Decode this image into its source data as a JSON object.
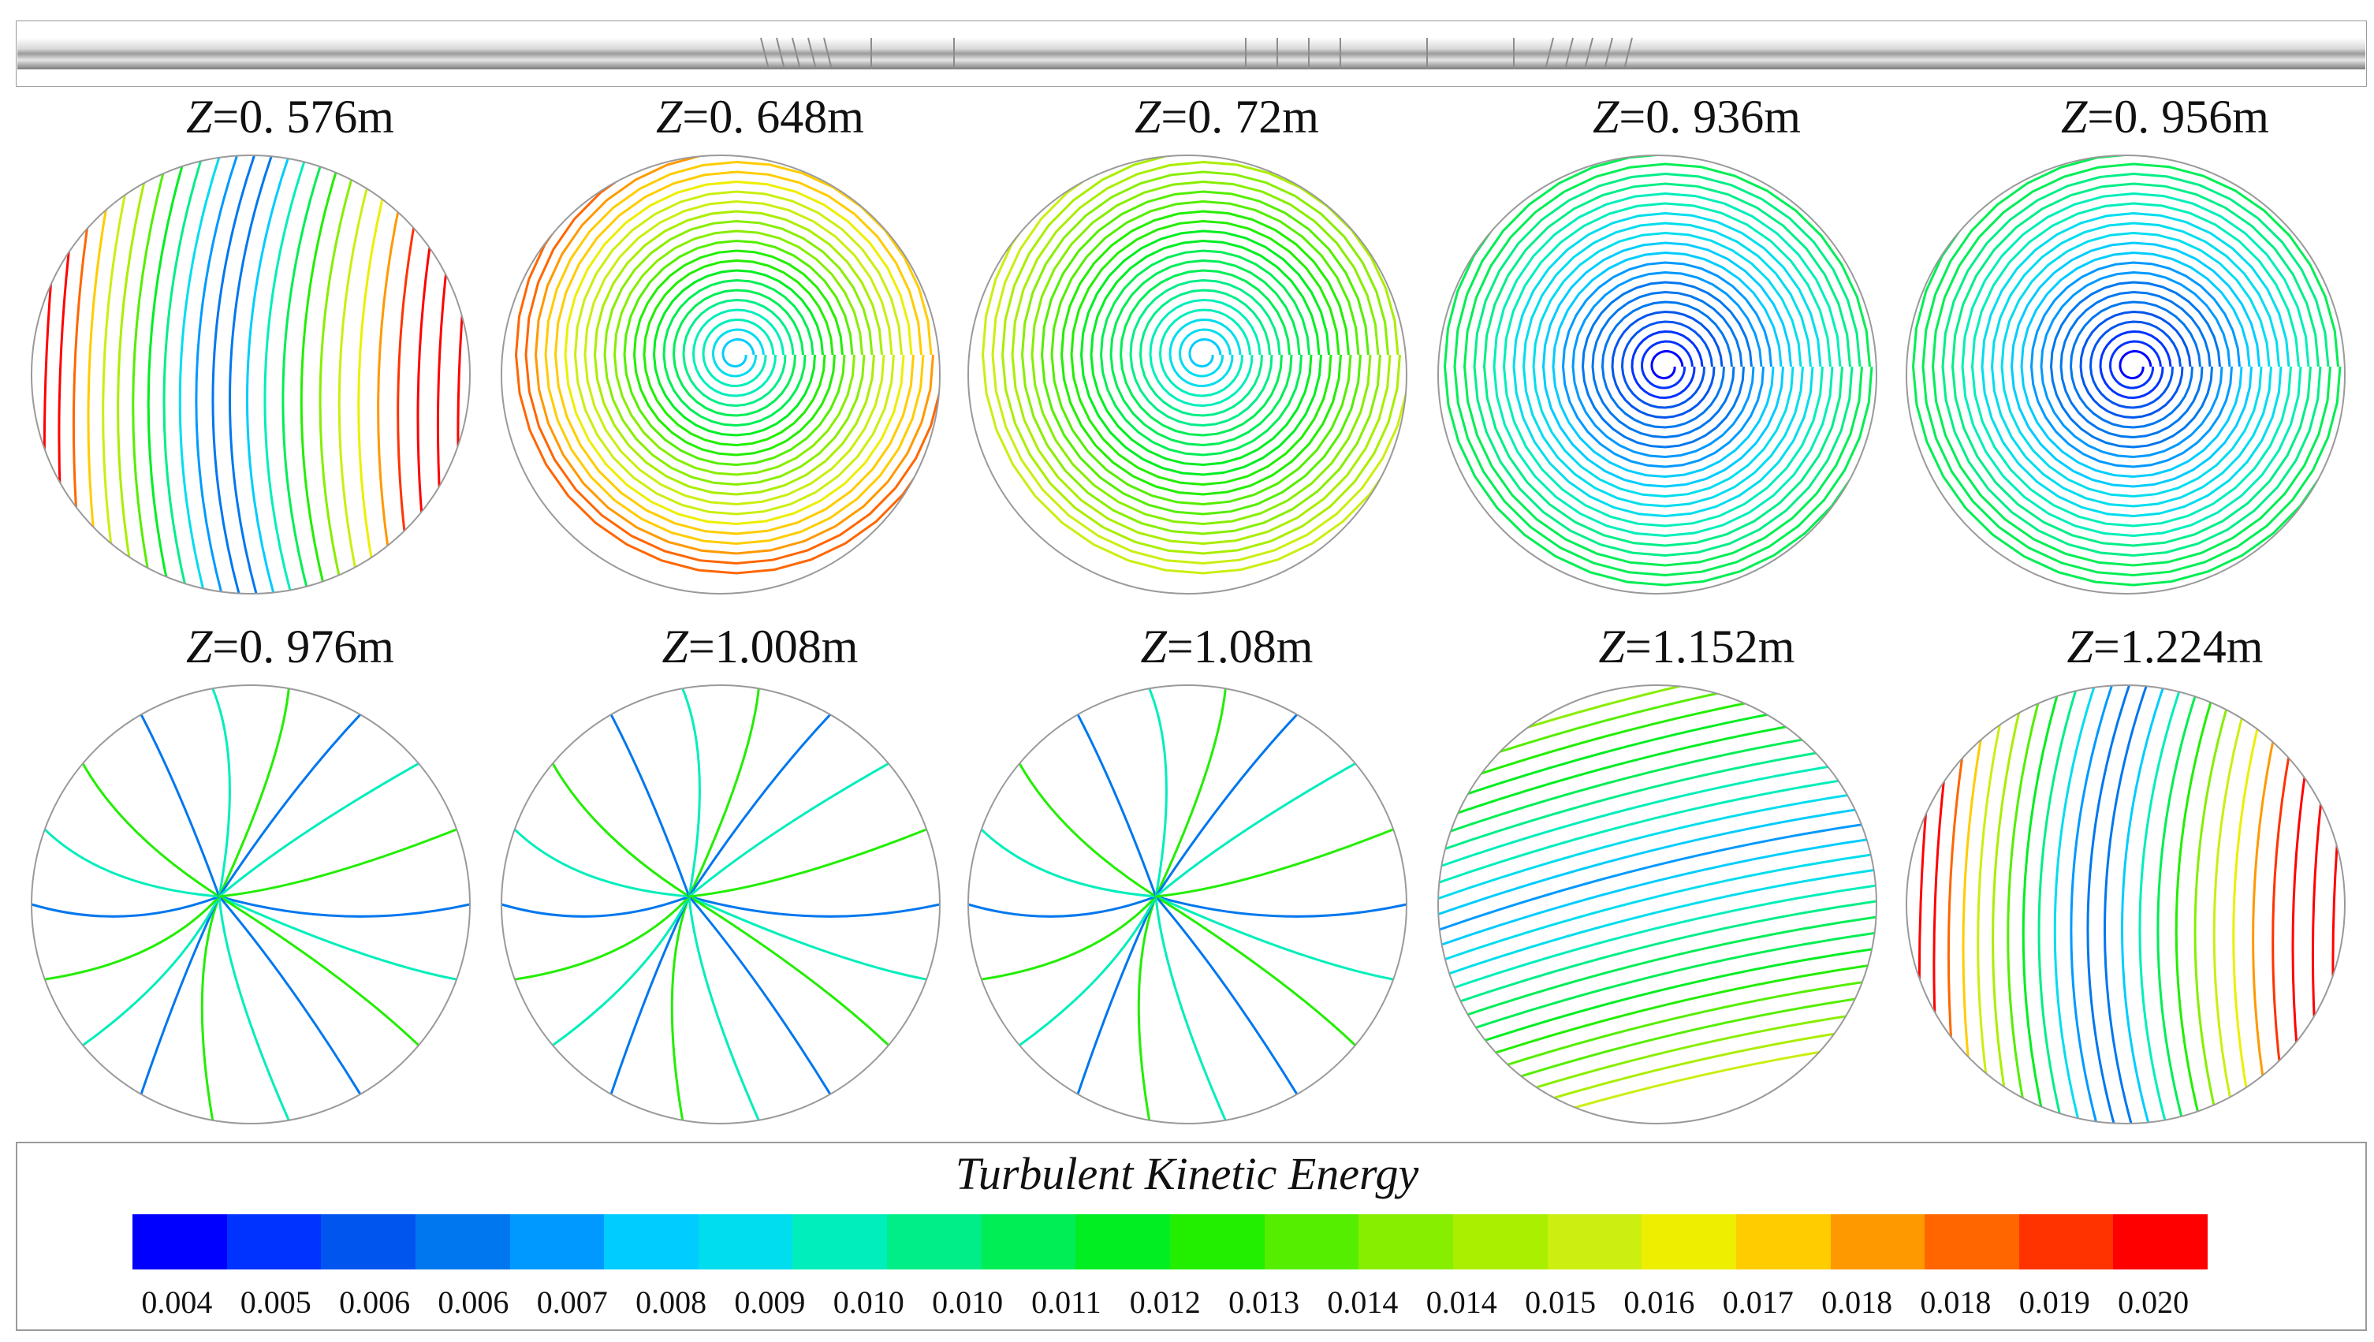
{
  "panels": [
    {
      "var": "Z",
      "value": "=0. 576m",
      "field": "uniform-high"
    },
    {
      "var": "Z",
      "value": "=0. 648m",
      "field": "vortex-hot-rim"
    },
    {
      "var": "Z",
      "value": "=0. 72m",
      "field": "vortex-warm"
    },
    {
      "var": "Z",
      "value": "=0. 936m",
      "field": "vortex-cool"
    },
    {
      "var": "Z",
      "value": "=0. 956m",
      "field": "vortex-cool"
    },
    {
      "var": "Z",
      "value": "=0. 976m",
      "field": "radial"
    },
    {
      "var": "Z",
      "value": "=1.008m",
      "field": "radial"
    },
    {
      "var": "Z",
      "value": "=1.08m",
      "field": "radial"
    },
    {
      "var": "Z",
      "value": "=1.152m",
      "field": "uniform-mid"
    },
    {
      "var": "Z",
      "value": "=1.224m",
      "field": "uniform-high"
    }
  ],
  "legend": {
    "title": "Turbulent Kinetic Energy",
    "colors": [
      "#0000ff",
      "#0033ff",
      "#0055ee",
      "#0077ee",
      "#0099ff",
      "#00ccff",
      "#00ddee",
      "#00eebb",
      "#00ee88",
      "#00ee55",
      "#00ee22",
      "#22ee00",
      "#55ee00",
      "#88ee00",
      "#aaee00",
      "#ccee11",
      "#eeee00",
      "#ffcc00",
      "#ff9900",
      "#ff6600",
      "#ff3300",
      "#ff0000"
    ],
    "ticks": [
      "0.004",
      "0.005",
      "0.006",
      "0.006",
      "0.007",
      "0.008",
      "0.009",
      "0.010",
      "0.010",
      "0.011",
      "0.012",
      "0.013",
      "0.014",
      "0.014",
      "0.015",
      "0.016",
      "0.017",
      "0.018",
      "0.018",
      "0.019",
      "0.020"
    ]
  }
}
